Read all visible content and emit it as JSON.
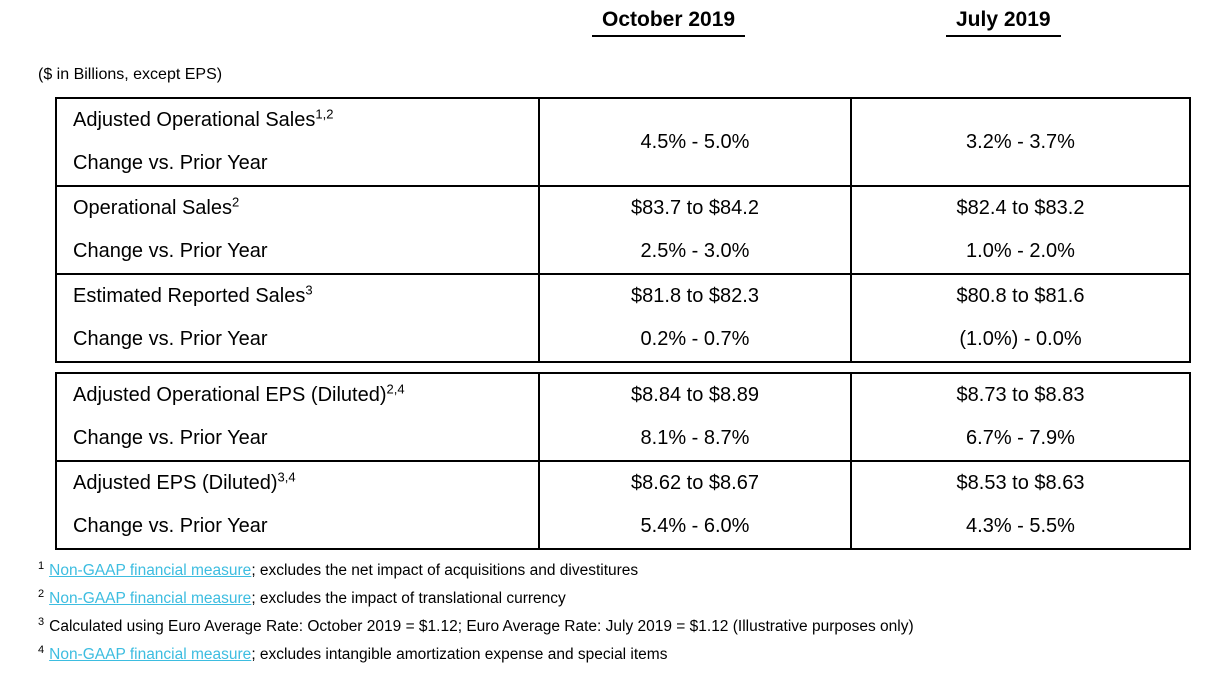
{
  "headers": {
    "october": "October 2019",
    "july": "July 2019"
  },
  "unit_note": "($ in Billions, except EPS)",
  "tables": {
    "sales": {
      "rows": [
        {
          "label": "Adjusted Operational Sales",
          "sup": "1,2",
          "sub_label": "Change vs. Prior Year",
          "october": {
            "value": "",
            "change": "4.5% - 5.0%"
          },
          "july": {
            "value": "",
            "change": "3.2% - 3.7%"
          }
        },
        {
          "label": "Operational Sales",
          "sup": "2",
          "sub_label": "Change vs. Prior Year",
          "october": {
            "value": "$83.7 to $84.2",
            "change": "2.5% - 3.0%"
          },
          "july": {
            "value": "$82.4 to $83.2",
            "change": "1.0% - 2.0%"
          }
        },
        {
          "label": "Estimated Reported Sales",
          "sup": "3",
          "sub_label": "Change vs. Prior Year",
          "october": {
            "value": "$81.8 to $82.3",
            "change": "0.2% - 0.7%"
          },
          "july": {
            "value": "$80.8 to $81.6",
            "change": "(1.0%) - 0.0%"
          }
        }
      ]
    },
    "eps": {
      "rows": [
        {
          "label": "Adjusted Operational EPS (Diluted)",
          "sup": "2,4",
          "sub_label": "Change vs. Prior Year",
          "october": {
            "value": "$8.84 to $8.89",
            "change": "8.1% - 8.7%"
          },
          "july": {
            "value": "$8.73 to $8.83",
            "change": "6.7% - 7.9%"
          }
        },
        {
          "label": "Adjusted EPS (Diluted)",
          "sup": "3,4",
          "sub_label": "Change vs. Prior Year",
          "october": {
            "value": "$8.62 to $8.67",
            "change": "5.4% - 6.0%"
          },
          "july": {
            "value": "$8.53 to $8.63",
            "change": "4.3% - 5.5%"
          }
        }
      ]
    }
  },
  "footnotes": [
    {
      "number": "1",
      "link": "Non-GAAP financial measure",
      "text": "; excludes the net impact of acquisitions and divestitures"
    },
    {
      "number": "2",
      "link": "Non-GAAP financial measure",
      "text": "; excludes the impact of translational currency"
    },
    {
      "number": "3",
      "link": "",
      "text": "Calculated using Euro Average Rate: October 2019 = $1.12; Euro Average Rate: July 2019 = $1.12 (Illustrative purposes only)"
    },
    {
      "number": "4",
      "link": "Non-GAAP financial measure",
      "text": "; excludes intangible amortization expense and special items"
    }
  ],
  "colors": {
    "link": "#3dbde0",
    "border": "#000000",
    "text": "#000000"
  }
}
